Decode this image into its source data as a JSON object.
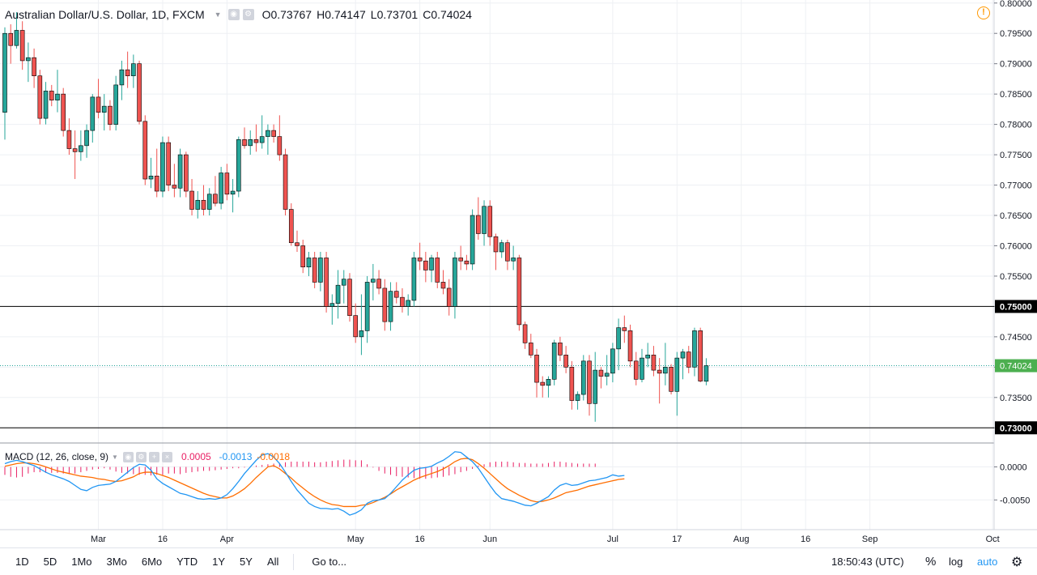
{
  "header": {
    "title": "Australian Dollar/U.S. Dollar, 1D, FXCM",
    "o_label": "O",
    "o_value": "0.73767",
    "h_label": "H",
    "h_value": "0.74147",
    "l_label": "L",
    "l_value": "0.73701",
    "c_label": "C",
    "c_value": "0.74024"
  },
  "macd_legend": {
    "label": "MACD (12, 26, close, 9)",
    "hist": "0.0005",
    "macd": "-0.0013",
    "signal": "-0.0018"
  },
  "bottom_bar": {
    "ranges": [
      "1D",
      "5D",
      "1Mo",
      "3Mo",
      "6Mo",
      "YTD",
      "1Y",
      "5Y",
      "All"
    ],
    "goto": "Go to...",
    "time": "18:50:43 (UTC)",
    "percent": "%",
    "log": "log",
    "auto": "auto"
  },
  "colors": {
    "up": "#26a69a",
    "down": "#ef5350",
    "up_fill": "#26a69a",
    "macd_line": "#2196f3",
    "signal_line": "#ff6d00",
    "histogram": "#e91e63",
    "last_price_bg": "#4caf50"
  },
  "chart_data": {
    "type": "candlestick",
    "symbol": "Australian Dollar/U.S. Dollar",
    "interval": "1D",
    "y_ticks": [
      "0.80000",
      "0.79500",
      "0.79000",
      "0.78500",
      "0.78000",
      "0.77500",
      "0.77000",
      "0.76500",
      "0.76000",
      "0.75500",
      "0.75000",
      "0.74500",
      "0.74000",
      "0.73500",
      "0.73000"
    ],
    "ylim": [
      0.7275,
      0.8005
    ],
    "x_labels": [
      {
        "label": "Mar",
        "index": 16
      },
      {
        "label": "16",
        "index": 27
      },
      {
        "label": "Apr",
        "index": 38
      },
      {
        "label": "May",
        "index": 60
      },
      {
        "label": "16",
        "index": 71
      },
      {
        "label": "Jun",
        "index": 83
      },
      {
        "label": "Jul",
        "index": 104
      },
      {
        "label": "17",
        "index": 115
      },
      {
        "label": "Aug",
        "index": 126
      },
      {
        "label": "16",
        "index": 137
      },
      {
        "label": "Sep",
        "index": 148
      },
      {
        "label": "Oct",
        "index": 169
      }
    ],
    "horizontal_lines": [
      0.75,
      0.73
    ],
    "last_price": "0.74024",
    "last_value": 0.74024,
    "hline_labels": [
      "0.75000",
      "0.73000"
    ],
    "candles": [
      [
        0.782,
        0.796,
        0.7775,
        0.795
      ],
      [
        0.795,
        0.7965,
        0.79,
        0.793
      ],
      [
        0.793,
        0.7985,
        0.7925,
        0.7955
      ],
      [
        0.7955,
        0.797,
        0.789,
        0.7905
      ],
      [
        0.7905,
        0.7935,
        0.787,
        0.791
      ],
      [
        0.791,
        0.7925,
        0.786,
        0.788
      ],
      [
        0.788,
        0.789,
        0.78,
        0.781
      ],
      [
        0.781,
        0.787,
        0.78,
        0.7855
      ],
      [
        0.7855,
        0.7865,
        0.783,
        0.784
      ],
      [
        0.784,
        0.789,
        0.782,
        0.785
      ],
      [
        0.785,
        0.786,
        0.778,
        0.779
      ],
      [
        0.779,
        0.781,
        0.775,
        0.776
      ],
      [
        0.776,
        0.779,
        0.771,
        0.7755
      ],
      [
        0.7755,
        0.779,
        0.774,
        0.7765
      ],
      [
        0.7765,
        0.78,
        0.7745,
        0.779
      ],
      [
        0.779,
        0.785,
        0.777,
        0.7845
      ],
      [
        0.7845,
        0.7875,
        0.781,
        0.782
      ],
      [
        0.782,
        0.785,
        0.779,
        0.783
      ],
      [
        0.783,
        0.784,
        0.779,
        0.78
      ],
      [
        0.78,
        0.788,
        0.779,
        0.7865
      ],
      [
        0.7865,
        0.7905,
        0.784,
        0.789
      ],
      [
        0.789,
        0.792,
        0.786,
        0.788
      ],
      [
        0.788,
        0.7915,
        0.786,
        0.79
      ],
      [
        0.79,
        0.7905,
        0.78,
        0.7805
      ],
      [
        0.7805,
        0.7815,
        0.77,
        0.771
      ],
      [
        0.771,
        0.7745,
        0.7695,
        0.7715
      ],
      [
        0.7715,
        0.776,
        0.768,
        0.769
      ],
      [
        0.769,
        0.778,
        0.768,
        0.777
      ],
      [
        0.777,
        0.778,
        0.769,
        0.77
      ],
      [
        0.77,
        0.7735,
        0.768,
        0.7695
      ],
      [
        0.7695,
        0.776,
        0.768,
        0.775
      ],
      [
        0.775,
        0.7755,
        0.768,
        0.769
      ],
      [
        0.769,
        0.771,
        0.765,
        0.766
      ],
      [
        0.766,
        0.769,
        0.7645,
        0.7675
      ],
      [
        0.7675,
        0.77,
        0.765,
        0.766
      ],
      [
        0.766,
        0.7695,
        0.765,
        0.7685
      ],
      [
        0.7685,
        0.7715,
        0.7665,
        0.767
      ],
      [
        0.767,
        0.773,
        0.766,
        0.772
      ],
      [
        0.772,
        0.7735,
        0.7675,
        0.7685
      ],
      [
        0.7685,
        0.771,
        0.7655,
        0.769
      ],
      [
        0.769,
        0.778,
        0.768,
        0.7775
      ],
      [
        0.7775,
        0.7795,
        0.776,
        0.7765
      ],
      [
        0.7765,
        0.779,
        0.775,
        0.7775
      ],
      [
        0.7775,
        0.78,
        0.7755,
        0.777
      ],
      [
        0.777,
        0.7815,
        0.776,
        0.778
      ],
      [
        0.778,
        0.78,
        0.775,
        0.779
      ],
      [
        0.779,
        0.78,
        0.777,
        0.778
      ],
      [
        0.778,
        0.7815,
        0.774,
        0.775
      ],
      [
        0.775,
        0.776,
        0.765,
        0.766
      ],
      [
        0.766,
        0.767,
        0.76,
        0.7605
      ],
      [
        0.7605,
        0.7625,
        0.759,
        0.76
      ],
      [
        0.76,
        0.761,
        0.7555,
        0.7565
      ],
      [
        0.7565,
        0.759,
        0.755,
        0.758
      ],
      [
        0.758,
        0.759,
        0.753,
        0.754
      ],
      [
        0.754,
        0.759,
        0.7525,
        0.758
      ],
      [
        0.758,
        0.759,
        0.749,
        0.75
      ],
      [
        0.75,
        0.752,
        0.747,
        0.7505
      ],
      [
        0.7505,
        0.756,
        0.748,
        0.7535
      ],
      [
        0.7535,
        0.756,
        0.7505,
        0.7545
      ],
      [
        0.7545,
        0.7555,
        0.7475,
        0.7485
      ],
      [
        0.7485,
        0.7505,
        0.744,
        0.745
      ],
      [
        0.745,
        0.752,
        0.742,
        0.746
      ],
      [
        0.746,
        0.755,
        0.744,
        0.754
      ],
      [
        0.754,
        0.757,
        0.751,
        0.7545
      ],
      [
        0.7545,
        0.756,
        0.752,
        0.753
      ],
      [
        0.753,
        0.7545,
        0.746,
        0.7475
      ],
      [
        0.7475,
        0.754,
        0.746,
        0.7525
      ],
      [
        0.7525,
        0.754,
        0.7505,
        0.7515
      ],
      [
        0.7515,
        0.753,
        0.749,
        0.75
      ],
      [
        0.75,
        0.752,
        0.7485,
        0.751
      ],
      [
        0.751,
        0.759,
        0.75,
        0.758
      ],
      [
        0.758,
        0.7605,
        0.756,
        0.7575
      ],
      [
        0.7575,
        0.759,
        0.754,
        0.756
      ],
      [
        0.756,
        0.7585,
        0.754,
        0.758
      ],
      [
        0.758,
        0.759,
        0.753,
        0.754
      ],
      [
        0.754,
        0.756,
        0.752,
        0.753
      ],
      [
        0.753,
        0.7545,
        0.7485,
        0.75
      ],
      [
        0.75,
        0.759,
        0.748,
        0.758
      ],
      [
        0.758,
        0.76,
        0.756,
        0.7575
      ],
      [
        0.7575,
        0.7585,
        0.756,
        0.757
      ],
      [
        0.757,
        0.766,
        0.756,
        0.765
      ],
      [
        0.765,
        0.768,
        0.761,
        0.762
      ],
      [
        0.762,
        0.7675,
        0.76,
        0.7665
      ],
      [
        0.7665,
        0.7675,
        0.76,
        0.7615
      ],
      [
        0.7615,
        0.762,
        0.756,
        0.759
      ],
      [
        0.759,
        0.761,
        0.758,
        0.7605
      ],
      [
        0.7605,
        0.761,
        0.756,
        0.7575
      ],
      [
        0.7575,
        0.76,
        0.756,
        0.758
      ],
      [
        0.758,
        0.7585,
        0.746,
        0.747
      ],
      [
        0.747,
        0.7475,
        0.743,
        0.744
      ],
      [
        0.744,
        0.7455,
        0.7415,
        0.742
      ],
      [
        0.742,
        0.743,
        0.735,
        0.7375
      ],
      [
        0.7375,
        0.7385,
        0.735,
        0.737
      ],
      [
        0.737,
        0.7385,
        0.735,
        0.738
      ],
      [
        0.738,
        0.7445,
        0.737,
        0.744
      ],
      [
        0.744,
        0.745,
        0.741,
        0.742
      ],
      [
        0.742,
        0.7435,
        0.739,
        0.74
      ],
      [
        0.74,
        0.741,
        0.733,
        0.7345
      ],
      [
        0.7345,
        0.736,
        0.733,
        0.7355
      ],
      [
        0.7355,
        0.742,
        0.7345,
        0.741
      ],
      [
        0.741,
        0.742,
        0.732,
        0.734
      ],
      [
        0.734,
        0.7425,
        0.731,
        0.7395
      ],
      [
        0.7395,
        0.74,
        0.7365,
        0.7385
      ],
      [
        0.7385,
        0.742,
        0.737,
        0.739
      ],
      [
        0.739,
        0.744,
        0.7375,
        0.743
      ],
      [
        0.743,
        0.748,
        0.7395,
        0.7465
      ],
      [
        0.7465,
        0.7485,
        0.744,
        0.746
      ],
      [
        0.746,
        0.747,
        0.74,
        0.741
      ],
      [
        0.741,
        0.7425,
        0.737,
        0.738
      ],
      [
        0.738,
        0.743,
        0.7375,
        0.7415
      ],
      [
        0.7415,
        0.744,
        0.74,
        0.742
      ],
      [
        0.742,
        0.7435,
        0.7385,
        0.7395
      ],
      [
        0.7395,
        0.7415,
        0.734,
        0.739
      ],
      [
        0.739,
        0.744,
        0.737,
        0.74
      ],
      [
        0.74,
        0.7405,
        0.7355,
        0.736
      ],
      [
        0.736,
        0.7425,
        0.732,
        0.7415
      ],
      [
        0.7415,
        0.743,
        0.738,
        0.7425
      ],
      [
        0.7425,
        0.7435,
        0.739,
        0.74
      ],
      [
        0.74,
        0.7465,
        0.7385,
        0.746
      ],
      [
        0.746,
        0.7465,
        0.7375,
        0.7377
      ],
      [
        0.73767,
        0.74147,
        0.73701,
        0.74024
      ]
    ],
    "macd": {
      "ylim": [
        -0.0095,
        0.0035
      ],
      "y_ticks": [
        "0.0000",
        "-0.0050"
      ],
      "macd_line": [
        0.0005,
        0.0008,
        0.001,
        0.0008,
        0.0005,
        0.0002,
        -0.0003,
        -0.0008,
        -0.0012,
        -0.0015,
        -0.0018,
        -0.0022,
        -0.0028,
        -0.0034,
        -0.0036,
        -0.0031,
        -0.0028,
        -0.0027,
        -0.0026,
        -0.0022,
        -0.0015,
        -0.0008,
        -0.0001,
        0.0004,
        0.0003,
        -0.0005,
        -0.0018,
        -0.0025,
        -0.003,
        -0.0035,
        -0.004,
        -0.0042,
        -0.0045,
        -0.0048,
        -0.0049,
        -0.0048,
        -0.0049,
        -0.0047,
        -0.0042,
        -0.0033,
        -0.0022,
        -0.001,
        0.0,
        0.001,
        0.0018,
        0.002,
        0.0015,
        0.0005,
        -0.0008,
        -0.0022,
        -0.0035,
        -0.0045,
        -0.0055,
        -0.006,
        -0.0063,
        -0.0063,
        -0.0064,
        -0.0063,
        -0.0067,
        -0.0073,
        -0.007,
        -0.0065,
        -0.0055,
        -0.0051,
        -0.005,
        -0.0048,
        -0.004,
        -0.003,
        -0.002,
        -0.0012,
        -0.0005,
        -0.0002,
        -0.0001,
        0.0001,
        0.0006,
        0.001,
        0.0016,
        0.0023,
        0.0022,
        0.0015,
        0.0008,
        -0.0002,
        -0.0015,
        -0.0028,
        -0.004,
        -0.0048,
        -0.005,
        -0.0052,
        -0.0055,
        -0.0058,
        -0.0059,
        -0.0055,
        -0.005,
        -0.0045,
        -0.0035,
        -0.0028,
        -0.0025,
        -0.0028,
        -0.0027,
        -0.0024,
        -0.0021,
        -0.002,
        -0.0018,
        -0.0016,
        -0.0012,
        -0.0014,
        -0.0013
      ],
      "signal_line": [
        0.0001,
        0.0003,
        0.0005,
        0.0006,
        0.0006,
        0.0005,
        0.0003,
        0.0,
        -0.0003,
        -0.0006,
        -0.0008,
        -0.001,
        -0.0012,
        -0.0014,
        -0.0015,
        -0.0016,
        -0.0018,
        -0.0019,
        -0.0021,
        -0.0022,
        -0.0021,
        -0.0018,
        -0.0015,
        -0.001,
        -0.0008,
        -0.0008,
        -0.001,
        -0.0013,
        -0.0016,
        -0.002,
        -0.0024,
        -0.0028,
        -0.0032,
        -0.0036,
        -0.004,
        -0.0043,
        -0.0045,
        -0.0047,
        -0.0047,
        -0.0044,
        -0.0039,
        -0.0033,
        -0.0025,
        -0.0016,
        -0.0008,
        0.0,
        0.0002,
        -0.0003,
        -0.001,
        -0.0017,
        -0.0025,
        -0.0032,
        -0.0039,
        -0.0045,
        -0.005,
        -0.0054,
        -0.0057,
        -0.0058,
        -0.006,
        -0.006,
        -0.006,
        -0.0058,
        -0.0057,
        -0.0054,
        -0.005,
        -0.0046,
        -0.0041,
        -0.0035,
        -0.003,
        -0.0025,
        -0.002,
        -0.0016,
        -0.0013,
        -0.001,
        -0.0007,
        -0.0003,
        0.0002,
        0.0008,
        0.0012,
        0.0013,
        0.0011,
        0.0005,
        -0.0002,
        -0.001,
        -0.0018,
        -0.0026,
        -0.0033,
        -0.0038,
        -0.0043,
        -0.0047,
        -0.0051,
        -0.0053,
        -0.0052,
        -0.005,
        -0.0047,
        -0.0043,
        -0.0039,
        -0.0037,
        -0.0035,
        -0.0032,
        -0.0029,
        -0.0027,
        -0.0025,
        -0.0023,
        -0.0021,
        -0.0019,
        -0.0018
      ],
      "histogram": [
        -0.0012,
        -0.0015,
        -0.0016,
        -0.0015,
        -0.001,
        -0.0008,
        -0.0008,
        -0.0009,
        -0.0009,
        -0.0009,
        -0.001,
        -0.0011,
        -0.001,
        -0.0008,
        -0.0006,
        -0.0004,
        -0.0003,
        -0.0002,
        -0.0004,
        -0.0007,
        -0.0009,
        -0.001,
        -0.0011,
        -0.0012,
        -0.0012,
        -0.0013,
        -0.0012,
        -0.0012,
        -0.001,
        -0.001,
        -0.0011,
        -0.0009,
        -0.0008,
        -0.0007,
        -0.0006,
        -0.0006,
        -0.0005,
        -0.0004,
        -0.0003,
        -0.0002,
        -0.0002,
        -0.0001,
        0.0,
        0.0002,
        0.0003,
        0.0004,
        0.0005,
        0.0006,
        0.0007,
        0.0008,
        0.0008,
        0.0008,
        0.0008,
        0.0007,
        0.0007,
        0.0008,
        0.0009,
        0.001,
        0.0011,
        0.0011,
        0.001,
        0.001,
        0.0004,
        -0.0001,
        -0.0006,
        -0.001,
        -0.0012,
        -0.0014,
        -0.0015,
        -0.0016,
        -0.0017,
        -0.0018,
        -0.0018,
        -0.0017,
        -0.0016,
        -0.0015,
        -0.0013,
        -0.0011,
        -0.0008,
        -0.0006,
        -0.0003,
        0.0002,
        0.0004,
        0.0007,
        0.0008,
        0.0008,
        0.0008,
        0.0007,
        0.0006,
        0.0006,
        0.0005,
        0.0005,
        0.0005,
        0.0006,
        0.0008,
        0.0008,
        0.0007,
        0.0006,
        0.0005,
        0.0005,
        0.0005,
        0.0005
      ],
      "hist_start_index": 0
    }
  }
}
